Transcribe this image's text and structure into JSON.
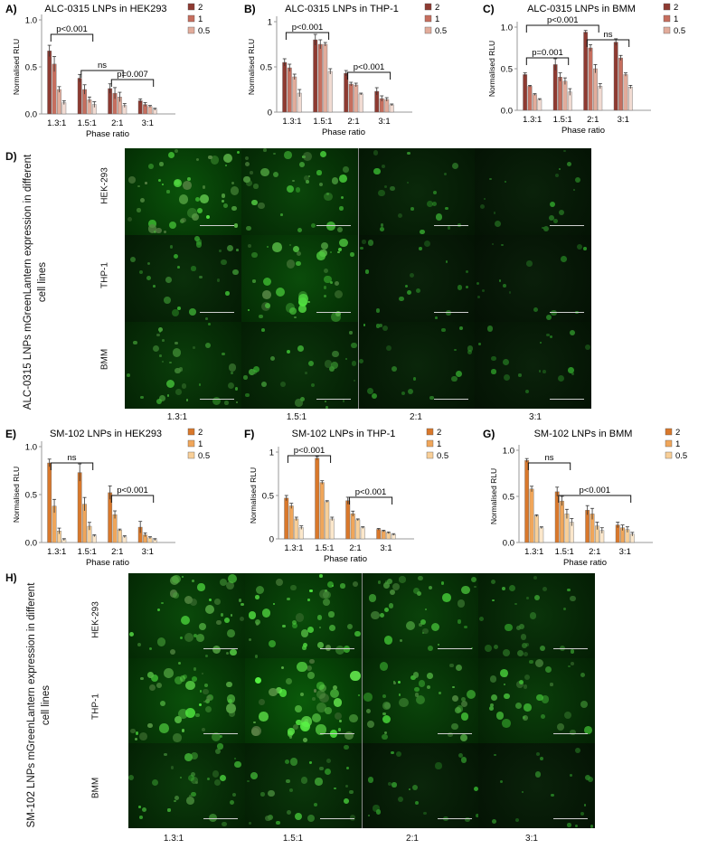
{
  "colors": {
    "alc": [
      "#8e3a31",
      "#c66e5e",
      "#e2ac9b",
      "#f1dbd2"
    ],
    "sm": [
      "#d9782b",
      "#f0a65a",
      "#f8cf98",
      "#fbe7cb"
    ]
  },
  "charts": [
    {
      "id": "A",
      "letter": "A)",
      "title": "ALC-0315 LNPs in HEK293",
      "ylabel": "Normalised RLU",
      "xlabel": "Phase ratio",
      "palette": "alc",
      "ylim": [
        0,
        1.0
      ],
      "yticks": [
        "0.0",
        "0.5",
        "1.0"
      ],
      "legend": [
        "2",
        "1",
        "0.5"
      ],
      "annotations": [
        "p<0.001",
        "ns",
        "p=0.007"
      ]
    },
    {
      "id": "B",
      "letter": "B)",
      "title": "ALC-0315 LNPs in THP-1",
      "ylabel": "Normalised RLU",
      "xlabel": "Phase ratio",
      "palette": "alc",
      "ylim": [
        0,
        1.0
      ],
      "yticks": [
        "0",
        "0.5",
        "1"
      ],
      "legend": [
        "2",
        "1",
        "0.5"
      ],
      "annotations": [
        "p<0.001",
        "p<0.001"
      ]
    },
    {
      "id": "C",
      "letter": "C)",
      "title": "ALC-0315 LNPs in BMM",
      "ylabel": "Normalised RLU",
      "xlabel": "Phase ratio",
      "palette": "alc",
      "ylim": [
        0,
        1.0
      ],
      "yticks": [
        "0.0",
        "0.5",
        "1.0"
      ],
      "legend": [
        "2",
        "1",
        "0.5"
      ],
      "annotations": [
        "p<0.001",
        "ns",
        "p=0.001"
      ]
    },
    {
      "id": "E",
      "letter": "E)",
      "title": "SM-102 LNPs in HEK293",
      "ylabel": "Normalised RLU",
      "xlabel": "Phase ratio",
      "palette": "sm",
      "ylim": [
        0,
        1.0
      ],
      "yticks": [
        "0.0",
        "0.5",
        "1.0"
      ],
      "legend": [
        "2",
        "1",
        "0.5"
      ],
      "annotations": [
        "ns",
        "p<0.001"
      ]
    },
    {
      "id": "F",
      "letter": "F)",
      "title": "SM-102 LNPs in THP-1",
      "ylabel": "Normalised RLU",
      "xlabel": "Phase ratio",
      "palette": "sm",
      "ylim": [
        0,
        1.0
      ],
      "yticks": [
        "0",
        "0.5",
        "1"
      ],
      "legend": [
        "2",
        "1",
        "0.5"
      ],
      "annotations": [
        "p<0.001",
        "p<0.001"
      ]
    },
    {
      "id": "G",
      "letter": "G)",
      "title": "SM-102 LNPs in BMM",
      "ylabel": "Normalised RLU",
      "xlabel": "Phase ratio",
      "palette": "sm",
      "ylim": [
        0,
        1.0
      ],
      "yticks": [
        "0.0",
        "0.5",
        "1.0"
      ],
      "legend": [
        "2",
        "1",
        "0.5"
      ],
      "annotations": [
        "ns",
        "p<0.001"
      ]
    }
  ],
  "chart_data": [
    {
      "type": "bar",
      "title": "ALC-0315 LNPs in HEK293",
      "xlabel": "Phase ratio",
      "ylabel": "Normalised RLU",
      "ylim": [
        0,
        1.0
      ],
      "categories": [
        "1.3:1",
        "1.5:1",
        "2:1",
        "3:1"
      ],
      "series": [
        {
          "name": "2",
          "values": [
            0.67,
            0.38,
            0.27,
            0.14
          ],
          "err": [
            0.06,
            0.04,
            0.05,
            0.02
          ]
        },
        {
          "name": "1",
          "values": [
            0.53,
            0.26,
            0.22,
            0.1
          ],
          "err": [
            0.08,
            0.05,
            0.06,
            0.02
          ]
        },
        {
          "name": "0.5",
          "values": [
            0.26,
            0.15,
            0.18,
            0.08
          ],
          "err": [
            0.03,
            0.03,
            0.05,
            0.01
          ]
        },
        {
          "values": [
            0.12,
            0.1,
            0.09,
            0.05
          ],
          "err": [
            0.02,
            0.03,
            0.02,
            0.01
          ]
        }
      ],
      "legend": "top-right",
      "grid": false
    },
    {
      "type": "bar",
      "title": "ALC-0315 LNPs in THP-1",
      "xlabel": "Phase ratio",
      "ylabel": "Normalised RLU",
      "ylim": [
        0,
        1.0
      ],
      "categories": [
        "1.3:1",
        "1.5:1",
        "2:1",
        "3:1"
      ],
      "series": [
        {
          "name": "2",
          "values": [
            0.55,
            0.8,
            0.43,
            0.23
          ],
          "err": [
            0.04,
            0.06,
            0.03,
            0.04
          ]
        },
        {
          "name": "1",
          "values": [
            0.49,
            0.75,
            0.31,
            0.15
          ],
          "err": [
            0.04,
            0.05,
            0.02,
            0.03
          ]
        },
        {
          "name": "0.5",
          "values": [
            0.39,
            0.75,
            0.3,
            0.14
          ],
          "err": [
            0.03,
            0.02,
            0.02,
            0.02
          ]
        },
        {
          "values": [
            0.21,
            0.45,
            0.2,
            0.08
          ],
          "err": [
            0.04,
            0.03,
            0.01,
            0.01
          ]
        }
      ],
      "legend": "top-right",
      "grid": false
    },
    {
      "type": "bar",
      "title": "ALC-0315 LNPs in BMM",
      "xlabel": "Phase ratio",
      "ylabel": "Normalised RLU",
      "ylim": [
        0,
        1.0
      ],
      "categories": [
        "1.3:1",
        "1.5:1",
        "2:1",
        "3:1"
      ],
      "series": [
        {
          "name": "2",
          "values": [
            0.43,
            0.55,
            0.94,
            0.82
          ],
          "err": [
            0.02,
            0.07,
            0.02,
            0.04
          ]
        },
        {
          "name": "1",
          "values": [
            0.29,
            0.4,
            0.75,
            0.63
          ],
          "err": [
            0.01,
            0.05,
            0.04,
            0.03
          ]
        },
        {
          "name": "0.5",
          "values": [
            0.19,
            0.35,
            0.5,
            0.43
          ],
          "err": [
            0.01,
            0.04,
            0.05,
            0.02
          ]
        },
        {
          "values": [
            0.13,
            0.22,
            0.29,
            0.28
          ],
          "err": [
            0.01,
            0.04,
            0.03,
            0.02
          ]
        }
      ],
      "legend": "top-right",
      "grid": false
    },
    {
      "type": "bar",
      "title": "SM-102 LNPs in HEK293",
      "xlabel": "Phase ratio",
      "ylabel": "Normalised RLU",
      "ylim": [
        0,
        1.0
      ],
      "categories": [
        "1.3:1",
        "1.5:1",
        "2:1",
        "3:1"
      ],
      "series": [
        {
          "name": "2",
          "values": [
            0.83,
            0.73,
            0.52,
            0.16
          ],
          "err": [
            0.04,
            0.09,
            0.07,
            0.06
          ]
        },
        {
          "name": "1",
          "values": [
            0.38,
            0.4,
            0.29,
            0.08
          ],
          "err": [
            0.07,
            0.07,
            0.04,
            0.02
          ]
        },
        {
          "name": "0.5",
          "values": [
            0.12,
            0.17,
            0.13,
            0.05
          ],
          "err": [
            0.03,
            0.04,
            0.01,
            0.01
          ]
        },
        {
          "values": [
            0.03,
            0.07,
            0.06,
            0.03
          ],
          "err": [
            0.01,
            0.01,
            0.01,
            0.01
          ]
        }
      ],
      "legend": "top-right",
      "grid": false
    },
    {
      "type": "bar",
      "title": "SM-102 LNPs in THP-1",
      "xlabel": "Phase ratio",
      "ylabel": "Normalised RLU",
      "ylim": [
        0,
        1.0
      ],
      "categories": [
        "1.3:1",
        "1.5:1",
        "2:1",
        "3:1"
      ],
      "series": [
        {
          "name": "2",
          "values": [
            0.47,
            0.93,
            0.44,
            0.11
          ],
          "err": [
            0.03,
            0.02,
            0.04,
            0.01
          ]
        },
        {
          "name": "1",
          "values": [
            0.38,
            0.65,
            0.29,
            0.09
          ],
          "err": [
            0.03,
            0.02,
            0.03,
            0.01
          ]
        },
        {
          "name": "0.5",
          "values": [
            0.23,
            0.43,
            0.22,
            0.07
          ],
          "err": [
            0.02,
            0.01,
            0.01,
            0.01
          ]
        },
        {
          "values": [
            0.13,
            0.23,
            0.13,
            0.05
          ],
          "err": [
            0.02,
            0.02,
            0.01,
            0.01
          ]
        }
      ],
      "legend": "top-right",
      "grid": false
    },
    {
      "type": "bar",
      "title": "SM-102 LNPs in BMM",
      "xlabel": "Phase ratio",
      "ylabel": "Normalised RLU",
      "ylim": [
        0,
        1.0
      ],
      "categories": [
        "1.3:1",
        "1.5:1",
        "2:1",
        "3:1"
      ],
      "series": [
        {
          "name": "2",
          "values": [
            0.89,
            0.55,
            0.35,
            0.19
          ],
          "err": [
            0.02,
            0.05,
            0.05,
            0.03
          ]
        },
        {
          "name": "1",
          "values": [
            0.58,
            0.45,
            0.31,
            0.16
          ],
          "err": [
            0.03,
            0.05,
            0.06,
            0.03
          ]
        },
        {
          "name": "0.5",
          "values": [
            0.29,
            0.31,
            0.18,
            0.14
          ],
          "err": [
            0.01,
            0.05,
            0.04,
            0.03
          ]
        },
        {
          "values": [
            0.16,
            0.22,
            0.13,
            0.09
          ],
          "err": [
            0.01,
            0.04,
            0.03,
            0.02
          ]
        }
      ],
      "legend": "top-right",
      "grid": false
    }
  ],
  "micrographs": [
    {
      "id": "D",
      "letter": "D)",
      "side_label": "ALC-0315 LNPs mGreenLantern expression in different cell lines",
      "rows": [
        "HEK-293",
        "THP-1",
        "BMM"
      ],
      "columns": [
        "1.3:1",
        "1.5:1",
        "2:1",
        "3:1"
      ],
      "intensity": [
        [
          0.9,
          0.7,
          0.3,
          0.2
        ],
        [
          0.4,
          0.8,
          0.2,
          0.15
        ],
        [
          0.6,
          0.45,
          0.25,
          0.2
        ]
      ]
    },
    {
      "id": "H",
      "letter": "H)",
      "side_label": "SM-102 LNPs mGreenLantern expression in different cell lines",
      "rows": [
        "HEK-293",
        "THP-1",
        "BMM"
      ],
      "columns": [
        "1.3:1",
        "1.5:1",
        "2:1",
        "3:1"
      ],
      "intensity": [
        [
          0.75,
          0.8,
          0.65,
          0.45
        ],
        [
          0.85,
          1.0,
          0.7,
          0.6
        ],
        [
          0.55,
          0.5,
          0.25,
          0.2
        ]
      ]
    }
  ]
}
